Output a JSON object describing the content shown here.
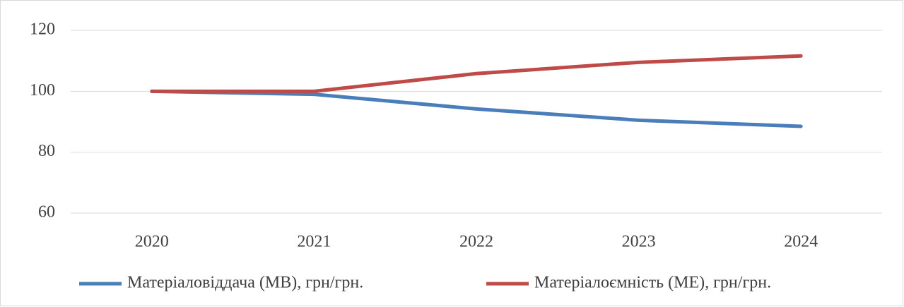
{
  "chart_data": {
    "type": "line",
    "categories": [
      "2020",
      "2021",
      "2022",
      "2023",
      "2024"
    ],
    "series": [
      {
        "name": "Матеріаловіддача (МВ), грн/грн.",
        "color": "#4a7ebb",
        "values": [
          100,
          99,
          94.2,
          90.5,
          88.5
        ]
      },
      {
        "name": "Матеріалоємність (МЕ), грн/грн.",
        "color": "#be4b48",
        "values": [
          100,
          100,
          105.8,
          109.5,
          111.6
        ]
      }
    ],
    "ylim": [
      60,
      120
    ],
    "yticks": [
      60,
      80,
      100,
      120
    ],
    "grid": true,
    "legend": "bottom"
  }
}
